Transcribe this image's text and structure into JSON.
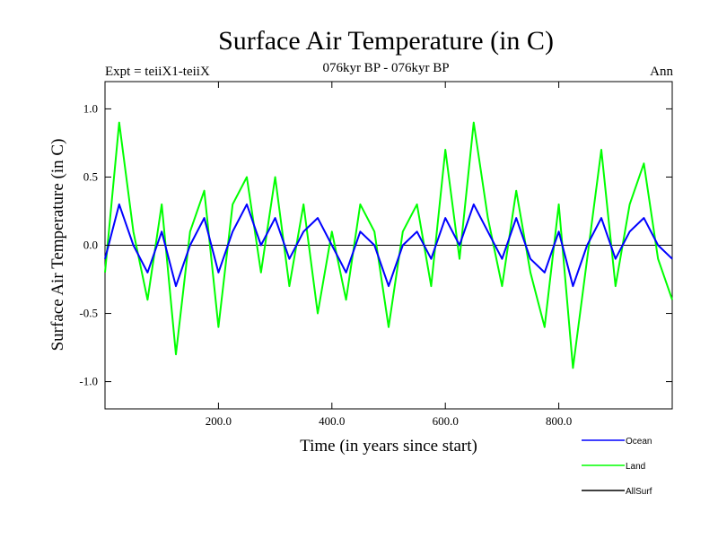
{
  "header": {
    "title": "Surface Air Temperature (in C)",
    "experiment": "Expt = teiiX1-teiiX",
    "period": "076kyr BP - 076kyr BP",
    "season": "Ann"
  },
  "chart_data": {
    "type": "line",
    "title": "Surface Air Temperature (in C)",
    "xlabel": "Time (in years since start)",
    "ylabel": "Surface Air Temperature (in C)",
    "xlim": [
      0,
      1000
    ],
    "ylim": [
      -1.2,
      1.2
    ],
    "x_ticks": [
      200,
      400,
      600,
      800
    ],
    "x_tick_labels": [
      "200.0",
      "400.0",
      "600.0",
      "800.0"
    ],
    "y_ticks": [
      -1.0,
      -0.5,
      0.0,
      0.5,
      1.0
    ],
    "y_tick_labels": [
      "-1.0",
      "-0.5",
      "0.0",
      "0.5",
      "1.0"
    ],
    "x": [
      0,
      25,
      50,
      75,
      100,
      125,
      150,
      175,
      200,
      225,
      250,
      275,
      300,
      325,
      350,
      375,
      400,
      425,
      450,
      475,
      500,
      525,
      550,
      575,
      600,
      625,
      650,
      675,
      700,
      725,
      750,
      775,
      800,
      825,
      850,
      875,
      900,
      925,
      950,
      975,
      1000
    ],
    "zero_line": true,
    "legend_position": "bottom-right",
    "series": [
      {
        "name": "Ocean",
        "color": "#0000ff",
        "values": [
          -0.1,
          0.3,
          0.0,
          -0.2,
          0.1,
          -0.3,
          0.0,
          0.2,
          -0.2,
          0.1,
          0.3,
          0.0,
          0.2,
          -0.1,
          0.1,
          0.2,
          0.0,
          -0.2,
          0.1,
          0.0,
          -0.3,
          0.0,
          0.1,
          -0.1,
          0.2,
          0.0,
          0.3,
          0.1,
          -0.1,
          0.2,
          -0.1,
          -0.2,
          0.1,
          -0.3,
          0.0,
          0.2,
          -0.1,
          0.1,
          0.2,
          0.0,
          -0.1
        ]
      },
      {
        "name": "Land",
        "color": "#00ff00",
        "values": [
          -0.2,
          0.9,
          0.1,
          -0.4,
          0.3,
          -0.8,
          0.1,
          0.4,
          -0.6,
          0.3,
          0.5,
          -0.2,
          0.5,
          -0.3,
          0.3,
          -0.5,
          0.1,
          -0.4,
          0.3,
          0.1,
          -0.6,
          0.1,
          0.3,
          -0.3,
          0.7,
          -0.1,
          0.9,
          0.2,
          -0.3,
          0.4,
          -0.2,
          -0.6,
          0.3,
          -0.9,
          -0.1,
          0.7,
          -0.3,
          0.3,
          0.6,
          -0.1,
          -0.4
        ]
      },
      {
        "name": "AllSurf",
        "color": "#000000",
        "values": [
          0,
          0,
          0,
          0,
          0,
          0,
          0,
          0,
          0,
          0,
          0,
          0,
          0,
          0,
          0,
          0,
          0,
          0,
          0,
          0,
          0,
          0,
          0,
          0,
          0,
          0,
          0,
          0,
          0,
          0,
          0,
          0,
          0,
          0,
          0,
          0,
          0,
          0,
          0,
          0,
          0
        ]
      }
    ]
  }
}
